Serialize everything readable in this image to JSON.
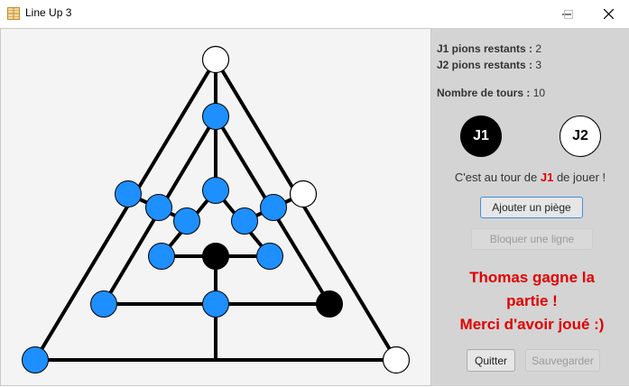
{
  "window": {
    "title": "Line Up 3",
    "controls": [
      "minimize-icon",
      "maximize-icon",
      "close-icon"
    ]
  },
  "board": {
    "colors": {
      "line": "#000000",
      "blue": "#1e8fff",
      "black": "#000000",
      "white": "#ffffff"
    },
    "pieces": [
      {
        "color": "white"
      },
      {
        "color": "blue"
      },
      {
        "color": "blue"
      },
      {
        "color": "blue"
      },
      {
        "color": "blue"
      },
      {
        "color": "blue"
      },
      {
        "color": "blue"
      },
      {
        "color": "white"
      },
      {
        "color": "blue"
      },
      {
        "color": "black"
      },
      {
        "color": "blue"
      },
      {
        "color": "blue"
      },
      {
        "color": "blue"
      },
      {
        "color": "black"
      },
      {
        "color": "blue"
      },
      {
        "color": "blue"
      },
      {
        "color": "white"
      }
    ]
  },
  "status": {
    "j1_label": "J1 pions restants :",
    "j1_value": "2",
    "j2_label": "J2 pions restants :",
    "j2_value": "3",
    "turns_label": "Nombre de tours :",
    "turns_value": "10"
  },
  "players": {
    "j1": "J1",
    "j2": "J2",
    "j1_color": "#000000",
    "j2_color": "#ffffff"
  },
  "turn": {
    "prefix": "C'est au tour de",
    "player": "J1",
    "suffix": "de jouer !"
  },
  "actions": {
    "add_trap": "Ajouter un piège",
    "block_line": "Bloquer une ligne",
    "quit": "Quitter",
    "save": "Sauvegarder"
  },
  "winner": {
    "line1": "Thomas gagne la",
    "line2": "partie !",
    "line3": "Merci d'avoir joué :)"
  }
}
